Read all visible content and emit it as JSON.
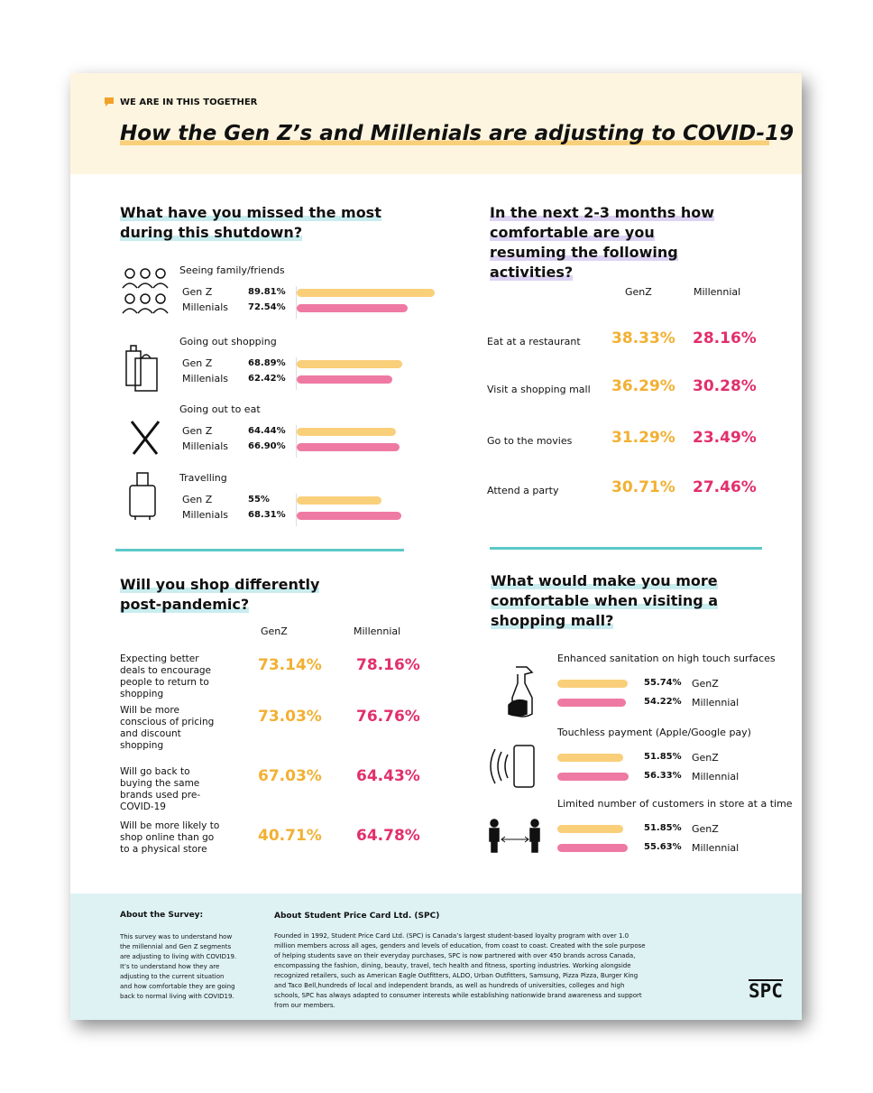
{
  "header": {
    "tag": "WE ARE IN THIS TOGETHER",
    "title": "How the Gen Z’s and Millenials are adjusting to COVID-19"
  },
  "missed": {
    "title": "What have you missed the most during this shutdown?",
    "items": [
      {
        "label": "Seeing family/friends",
        "rows": [
          {
            "name": "Gen Z",
            "value": 89.81,
            "label": "89.81%"
          },
          {
            "name": "Millenials",
            "value": 72.54,
            "label": "72.54%"
          }
        ]
      },
      {
        "label": "Going out shopping",
        "rows": [
          {
            "name": "Gen Z",
            "value": 68.89,
            "label": "68.89%"
          },
          {
            "name": "Millenials",
            "value": 62.42,
            "label": "62.42%"
          }
        ]
      },
      {
        "label": "Going out to eat",
        "rows": [
          {
            "name": "Gen Z",
            "value": 64.44,
            "label": "64.44%"
          },
          {
            "name": "Millenials",
            "value": 66.9,
            "label": "66.90%"
          }
        ]
      },
      {
        "label": "Travelling",
        "rows": [
          {
            "name": "Gen Z",
            "value": 55,
            "label": "55%"
          },
          {
            "name": "Millenials",
            "value": 68.31,
            "label": "68.31%"
          }
        ]
      }
    ]
  },
  "resuming": {
    "title": "In the next  2-3 months how comfortable are you resuming the following activities?",
    "columns": [
      "GenZ",
      "Millennial"
    ],
    "rows": [
      {
        "activity": "Eat at a restaurant",
        "values": [
          "38.33%",
          "28.16%"
        ]
      },
      {
        "activity": "Visit a shopping mall",
        "values": [
          "36.29%",
          "30.28%"
        ]
      },
      {
        "activity": "Go to the movies",
        "values": [
          "31.29%",
          "23.49%"
        ]
      },
      {
        "activity": "Attend a party",
        "values": [
          "30.71%",
          "27.46%"
        ]
      }
    ]
  },
  "shop": {
    "title": "Will you shop differently post-pandemic?",
    "columns": [
      "GenZ",
      "Millennial"
    ],
    "rows": [
      {
        "statement": "Expecting better deals to encourage people to return to shopping",
        "values": [
          "73.14%",
          "78.16%"
        ]
      },
      {
        "statement": "Will be more conscious of pricing and discount shopping",
        "values": [
          "73.03%",
          "76.76%"
        ]
      },
      {
        "statement": "Will go back to buying the same brands used pre- COVID-19",
        "values": [
          "67.03%",
          "64.43%"
        ]
      },
      {
        "statement": "Will be more likely to shop online than go to a physical store",
        "values": [
          "40.71%",
          "64.78%"
        ]
      }
    ]
  },
  "mall": {
    "title": "What would make you more comfortable when visiting a shopping mall?",
    "items": [
      {
        "label": "Enhanced sanitation on high touch surfaces",
        "rows": [
          {
            "name": "GenZ",
            "value": 55.74,
            "label": "55.74%"
          },
          {
            "name": "Millennial",
            "value": 54.22,
            "label": "54.22%"
          }
        ]
      },
      {
        "label": "Touchless payment (Apple/Google pay)",
        "rows": [
          {
            "name": "GenZ",
            "value": 51.85,
            "label": "51.85%"
          },
          {
            "name": "Millennial",
            "value": 56.33,
            "label": "56.33%"
          }
        ]
      },
      {
        "label": "Limited number of customers in store at a time",
        "rows": [
          {
            "name": "GenZ",
            "value": 51.85,
            "label": "51.85%"
          },
          {
            "name": "Millennial",
            "value": 55.63,
            "label": "55.63%"
          }
        ]
      }
    ]
  },
  "footer": {
    "survey_title": "About the Survey:",
    "survey_text": "This survey was to understand how the millennial and Gen Z segments are adjusting to living with COVID19. It’s to understand how they are adjusting to the current situation and how comfortable they are going back to normal living with COVID19.",
    "spc_title": "About Student Price Card Ltd. (SPC)",
    "spc_text": "Founded in 1992, Student Price Card Ltd. (SPC) is Canada’s largest student-based loyalty program with over 1.0 million members across all ages, genders and levels of education, from coast to coast. Created with the sole purpose of helping students save on their everyday purchases, SPC is now partnered with over 450 brands across Canada, encompassing the fashion, dining, beauty, travel, tech health and fitness, sporting industries. Working alongside recognized retailers, such as American Eagle Outfitters, ALDO, Urban Outfitters, Samsung, Pizza Pizza, Burger King and Taco Bell,hundreds of local and independent brands, as well as hundreds of universities, colleges and high schools, SPC has always adapted to consumer interests while establishing nationwide brand awareness and support from our members.",
    "logo": "SPC"
  }
}
